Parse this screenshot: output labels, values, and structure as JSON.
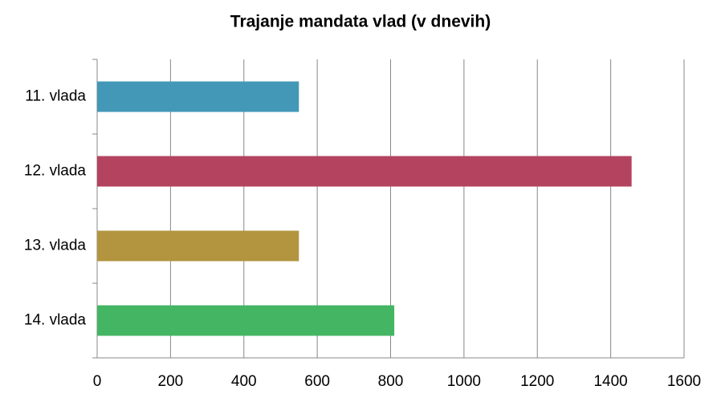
{
  "chart_data": {
    "type": "bar",
    "orientation": "horizontal",
    "title": "Trajanje mandata vlad (v dnevih)",
    "categories": [
      "11. vlada",
      "12. vlada",
      "13. vlada",
      "14. vlada"
    ],
    "values": [
      550,
      1457,
      550,
      810
    ],
    "colors": [
      "#4398b7",
      "#b3435f",
      "#b3953f",
      "#43b563"
    ],
    "xlim": [
      0,
      1600
    ],
    "xticks": [
      0,
      200,
      400,
      600,
      800,
      1000,
      1200,
      1400,
      1600
    ],
    "grid": true
  }
}
